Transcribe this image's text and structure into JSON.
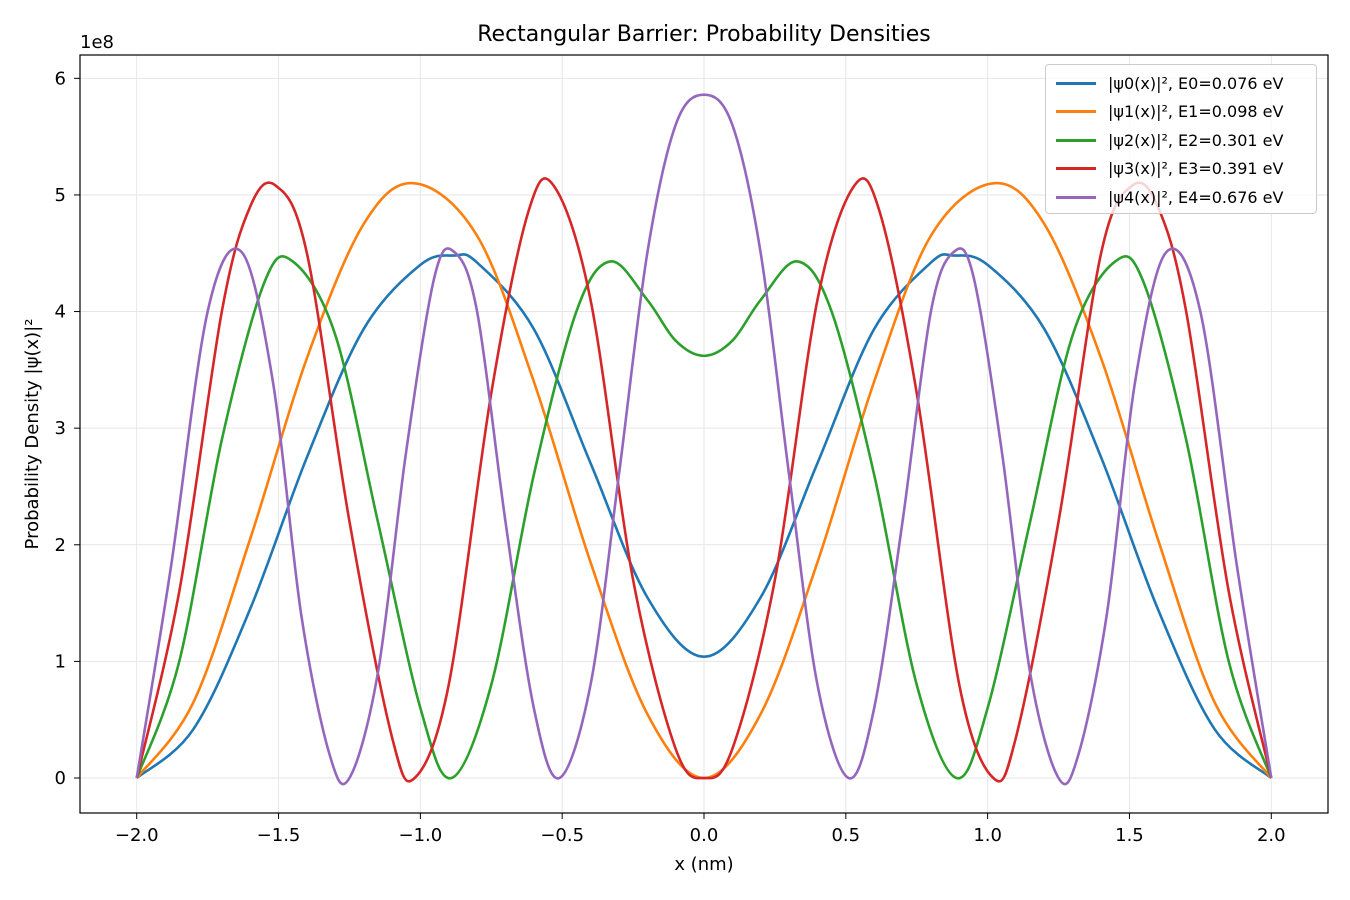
{
  "chart_data": {
    "type": "line",
    "title": "Rectangular Barrier: Probability Densities",
    "xlabel": "x (nm)",
    "ylabel": "Probability Density |ψ(x)|²",
    "y_offset_label": "1e8",
    "xlim": [
      -2.2,
      2.2
    ],
    "ylim": [
      -0.3,
      6.2
    ],
    "y_scale_unit": 100000000,
    "grid": true,
    "legend_position": "top-right",
    "x_ticks": [
      -2.0,
      -1.5,
      -1.0,
      -0.5,
      0.0,
      0.5,
      1.0,
      1.5,
      2.0
    ],
    "x_tick_labels": [
      "−2.0",
      "−1.5",
      "−1.0",
      "−0.5",
      "0.0",
      "0.5",
      "1.0",
      "1.5",
      "2.0"
    ],
    "y_ticks": [
      0,
      1,
      2,
      3,
      4,
      5,
      6
    ],
    "y_tick_labels": [
      "0",
      "1",
      "2",
      "3",
      "4",
      "5",
      "6"
    ],
    "series": [
      {
        "name": "|ψ0(x)|², E0=0.076 eV",
        "color": "#1f77b4",
        "x": [
          -2.0,
          -1.8,
          -1.6,
          -1.4,
          -1.2,
          -1.0,
          -0.88,
          -0.8,
          -0.6,
          -0.4,
          -0.2,
          0.0,
          0.2,
          0.4,
          0.6,
          0.8,
          0.88,
          1.0,
          1.2,
          1.4,
          1.6,
          1.8,
          2.0
        ],
        "y": [
          0.0,
          0.42,
          1.45,
          2.75,
          3.85,
          4.4,
          4.48,
          4.42,
          3.85,
          2.7,
          1.55,
          1.04,
          1.55,
          2.7,
          3.85,
          4.42,
          4.48,
          4.4,
          3.85,
          2.75,
          1.45,
          0.42,
          0.0
        ]
      },
      {
        "name": "|ψ1(x)|², E1=0.098 eV",
        "color": "#ff7f0e",
        "x": [
          -2.0,
          -1.8,
          -1.6,
          -1.4,
          -1.2,
          -1.02,
          -0.8,
          -0.6,
          -0.4,
          -0.2,
          0.0,
          0.2,
          0.4,
          0.6,
          0.8,
          1.02,
          1.2,
          1.4,
          1.6,
          1.8,
          2.0
        ],
        "y": [
          0.0,
          0.65,
          2.05,
          3.6,
          4.75,
          5.1,
          4.65,
          3.4,
          1.85,
          0.55,
          0.0,
          0.55,
          1.85,
          3.4,
          4.65,
          5.1,
          4.75,
          3.6,
          2.05,
          0.65,
          0.0
        ]
      },
      {
        "name": "|ψ2(x)|², E2=0.301 eV",
        "color": "#2ca02c",
        "x": [
          -2.0,
          -1.85,
          -1.7,
          -1.55,
          -1.45,
          -1.3,
          -1.15,
          -1.0,
          -0.89,
          -0.75,
          -0.6,
          -0.45,
          -0.33,
          -0.2,
          -0.1,
          0.0,
          0.1,
          0.2,
          0.33,
          0.45,
          0.6,
          0.75,
          0.89,
          1.0,
          1.15,
          1.3,
          1.45,
          1.55,
          1.7,
          1.85,
          2.0
        ],
        "y": [
          0.0,
          1.0,
          2.9,
          4.25,
          4.43,
          3.8,
          2.2,
          0.6,
          0.0,
          0.8,
          2.6,
          4.0,
          4.43,
          4.1,
          3.75,
          3.62,
          3.75,
          4.1,
          4.43,
          4.0,
          2.6,
          0.8,
          0.0,
          0.6,
          2.2,
          3.8,
          4.43,
          4.25,
          2.9,
          1.0,
          0.0
        ]
      },
      {
        "name": "|ψ3(x)|², E3=0.391 eV",
        "color": "#d62728",
        "x": [
          -2.0,
          -1.85,
          -1.7,
          -1.6,
          -1.51,
          -1.4,
          -1.25,
          -1.1,
          -1.02,
          -0.9,
          -0.75,
          -0.62,
          -0.53,
          -0.4,
          -0.25,
          -0.1,
          0.0,
          0.1,
          0.25,
          0.4,
          0.53,
          0.62,
          0.75,
          0.9,
          1.02,
          1.1,
          1.25,
          1.4,
          1.51,
          1.6,
          1.7,
          1.85,
          2.0
        ],
        "y": [
          0.0,
          1.6,
          4.0,
          4.9,
          5.08,
          4.5,
          2.2,
          0.35,
          0.0,
          0.8,
          3.3,
          4.85,
          5.08,
          4.1,
          1.7,
          0.25,
          0.0,
          0.25,
          1.7,
          4.1,
          5.08,
          4.85,
          3.3,
          0.8,
          0.0,
          0.35,
          2.2,
          4.5,
          5.08,
          4.9,
          4.0,
          1.6,
          0.0
        ]
      },
      {
        "name": "|ψ4(x)|², E4=0.676 eV",
        "color": "#9467bd",
        "x": [
          -2.0,
          -1.88,
          -1.75,
          -1.63,
          -1.52,
          -1.42,
          -1.32,
          -1.25,
          -1.15,
          -1.05,
          -0.95,
          -0.88,
          -0.8,
          -0.7,
          -0.6,
          -0.51,
          -0.4,
          -0.3,
          -0.2,
          -0.1,
          0.0,
          0.1,
          0.2,
          0.3,
          0.4,
          0.51,
          0.6,
          0.7,
          0.8,
          0.88,
          0.95,
          1.05,
          1.15,
          1.25,
          1.32,
          1.42,
          1.52,
          1.63,
          1.75,
          1.88,
          2.0
        ],
        "y": [
          0.0,
          1.8,
          4.0,
          4.51,
          3.4,
          1.4,
          0.2,
          0.0,
          0.9,
          2.8,
          4.3,
          4.51,
          4.0,
          2.2,
          0.6,
          0.0,
          0.8,
          2.6,
          4.5,
          5.6,
          5.86,
          5.6,
          4.5,
          2.6,
          0.8,
          0.0,
          0.6,
          2.2,
          4.0,
          4.51,
          4.3,
          2.8,
          0.9,
          0.0,
          0.2,
          1.4,
          3.4,
          4.51,
          4.0,
          1.8,
          0.0
        ]
      }
    ]
  }
}
